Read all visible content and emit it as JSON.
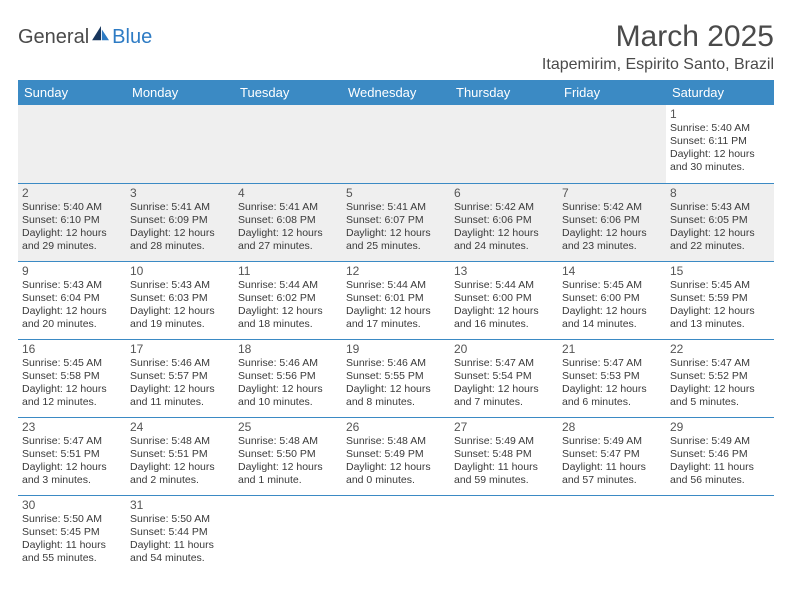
{
  "logo": {
    "text1": "General",
    "text2": "Blue"
  },
  "title": "March 2025",
  "location": "Itapemirim, Espirito Santo, Brazil",
  "colors": {
    "header_bg": "#3b8ac4",
    "header_text": "#ffffff",
    "cell_border": "#3b8ac4",
    "gray_cell": "#efefef",
    "text": "#3a3a3a",
    "logo_blue": "#2d7bc4"
  },
  "day_headers": [
    "Sunday",
    "Monday",
    "Tuesday",
    "Wednesday",
    "Thursday",
    "Friday",
    "Saturday"
  ],
  "weeks": [
    [
      null,
      null,
      null,
      null,
      null,
      null,
      {
        "n": "1",
        "sunrise": "5:40 AM",
        "sunset": "6:11 PM",
        "day_h": "12",
        "day_m": "30"
      }
    ],
    [
      {
        "n": "2",
        "sunrise": "5:40 AM",
        "sunset": "6:10 PM",
        "day_h": "12",
        "day_m": "29"
      },
      {
        "n": "3",
        "sunrise": "5:41 AM",
        "sunset": "6:09 PM",
        "day_h": "12",
        "day_m": "28"
      },
      {
        "n": "4",
        "sunrise": "5:41 AM",
        "sunset": "6:08 PM",
        "day_h": "12",
        "day_m": "27"
      },
      {
        "n": "5",
        "sunrise": "5:41 AM",
        "sunset": "6:07 PM",
        "day_h": "12",
        "day_m": "25"
      },
      {
        "n": "6",
        "sunrise": "5:42 AM",
        "sunset": "6:06 PM",
        "day_h": "12",
        "day_m": "24"
      },
      {
        "n": "7",
        "sunrise": "5:42 AM",
        "sunset": "6:06 PM",
        "day_h": "12",
        "day_m": "23"
      },
      {
        "n": "8",
        "sunrise": "5:43 AM",
        "sunset": "6:05 PM",
        "day_h": "12",
        "day_m": "22"
      }
    ],
    [
      {
        "n": "9",
        "sunrise": "5:43 AM",
        "sunset": "6:04 PM",
        "day_h": "12",
        "day_m": "20"
      },
      {
        "n": "10",
        "sunrise": "5:43 AM",
        "sunset": "6:03 PM",
        "day_h": "12",
        "day_m": "19"
      },
      {
        "n": "11",
        "sunrise": "5:44 AM",
        "sunset": "6:02 PM",
        "day_h": "12",
        "day_m": "18"
      },
      {
        "n": "12",
        "sunrise": "5:44 AM",
        "sunset": "6:01 PM",
        "day_h": "12",
        "day_m": "17"
      },
      {
        "n": "13",
        "sunrise": "5:44 AM",
        "sunset": "6:00 PM",
        "day_h": "12",
        "day_m": "16"
      },
      {
        "n": "14",
        "sunrise": "5:45 AM",
        "sunset": "6:00 PM",
        "day_h": "12",
        "day_m": "14"
      },
      {
        "n": "15",
        "sunrise": "5:45 AM",
        "sunset": "5:59 PM",
        "day_h": "12",
        "day_m": "13"
      }
    ],
    [
      {
        "n": "16",
        "sunrise": "5:45 AM",
        "sunset": "5:58 PM",
        "day_h": "12",
        "day_m": "12"
      },
      {
        "n": "17",
        "sunrise": "5:46 AM",
        "sunset": "5:57 PM",
        "day_h": "12",
        "day_m": "11"
      },
      {
        "n": "18",
        "sunrise": "5:46 AM",
        "sunset": "5:56 PM",
        "day_h": "12",
        "day_m": "10"
      },
      {
        "n": "19",
        "sunrise": "5:46 AM",
        "sunset": "5:55 PM",
        "day_h": "12",
        "day_m": "8"
      },
      {
        "n": "20",
        "sunrise": "5:47 AM",
        "sunset": "5:54 PM",
        "day_h": "12",
        "day_m": "7"
      },
      {
        "n": "21",
        "sunrise": "5:47 AM",
        "sunset": "5:53 PM",
        "day_h": "12",
        "day_m": "6"
      },
      {
        "n": "22",
        "sunrise": "5:47 AM",
        "sunset": "5:52 PM",
        "day_h": "12",
        "day_m": "5"
      }
    ],
    [
      {
        "n": "23",
        "sunrise": "5:47 AM",
        "sunset": "5:51 PM",
        "day_h": "12",
        "day_m": "3"
      },
      {
        "n": "24",
        "sunrise": "5:48 AM",
        "sunset": "5:51 PM",
        "day_h": "12",
        "day_m": "2"
      },
      {
        "n": "25",
        "sunrise": "5:48 AM",
        "sunset": "5:50 PM",
        "day_h": "12",
        "day_m": "1",
        "singular": true
      },
      {
        "n": "26",
        "sunrise": "5:48 AM",
        "sunset": "5:49 PM",
        "day_h": "12",
        "day_m": "0"
      },
      {
        "n": "27",
        "sunrise": "5:49 AM",
        "sunset": "5:48 PM",
        "day_h": "11",
        "day_m": "59"
      },
      {
        "n": "28",
        "sunrise": "5:49 AM",
        "sunset": "5:47 PM",
        "day_h": "11",
        "day_m": "57"
      },
      {
        "n": "29",
        "sunrise": "5:49 AM",
        "sunset": "5:46 PM",
        "day_h": "11",
        "day_m": "56"
      }
    ],
    [
      {
        "n": "30",
        "sunrise": "5:50 AM",
        "sunset": "5:45 PM",
        "day_h": "11",
        "day_m": "55"
      },
      {
        "n": "31",
        "sunrise": "5:50 AM",
        "sunset": "5:44 PM",
        "day_h": "11",
        "day_m": "54"
      },
      null,
      null,
      null,
      null,
      null
    ]
  ]
}
